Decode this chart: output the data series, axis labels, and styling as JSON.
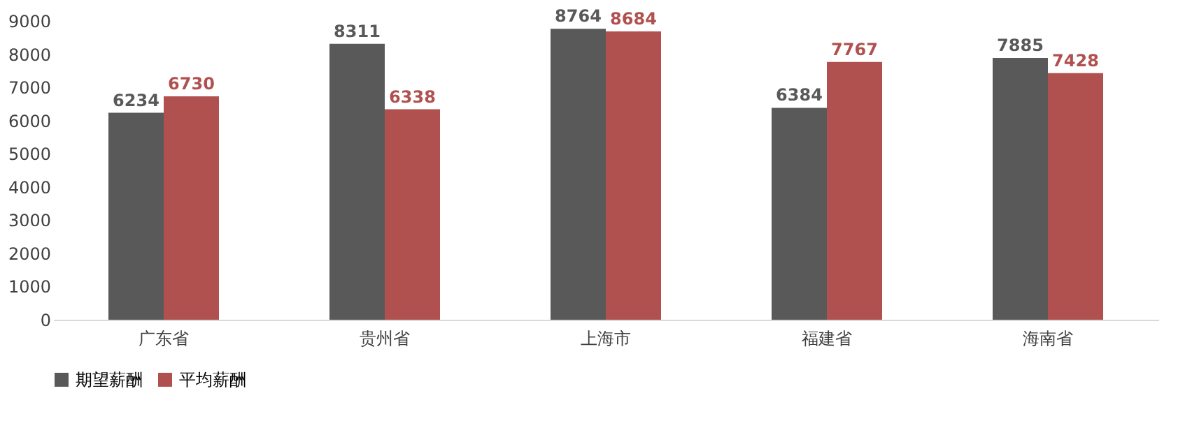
{
  "chart_data": {
    "type": "bar",
    "categories": [
      "广东省",
      "贵州省",
      "上海市",
      "福建省",
      "海南省"
    ],
    "series": [
      {
        "name": "期望薪酬",
        "color": "#595959",
        "values": [
          6234,
          8311,
          8764,
          6384,
          7885
        ]
      },
      {
        "name": "平均薪酬",
        "color": "#b0504f",
        "values": [
          6730,
          6338,
          8684,
          7767,
          7428
        ]
      }
    ],
    "ylim": [
      0,
      9000
    ],
    "yticks": [
      0,
      1000,
      2000,
      3000,
      4000,
      5000,
      6000,
      7000,
      8000,
      9000
    ],
    "grid": false,
    "legend": "bottom",
    "data_labels": true
  }
}
